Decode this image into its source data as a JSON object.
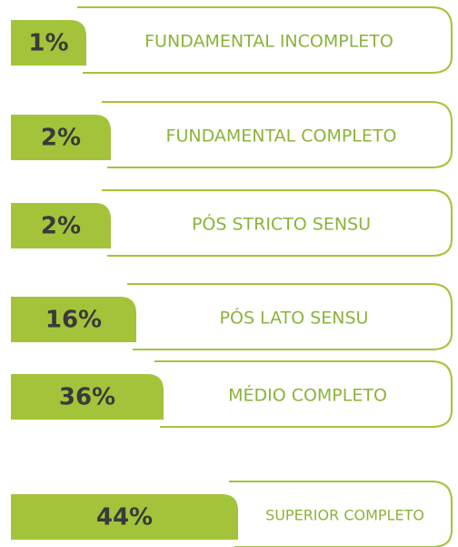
{
  "items": [
    {
      "percent": "1%",
      "label": "FUNDAMENTAL INCOMPLETO"
    },
    {
      "percent": "2%",
      "label": "FUNDAMENTAL COMPLETO"
    },
    {
      "percent": "2%",
      "label": "PÓS STRICTO SENSU"
    },
    {
      "percent": "16%",
      "label": "PÓS LATO SENSU"
    },
    {
      "percent": "36%",
      "label": "MÉDIO COMPLETO"
    },
    {
      "percent": "44%",
      "label": "SUPERIOR COMPLETO"
    }
  ]
}
